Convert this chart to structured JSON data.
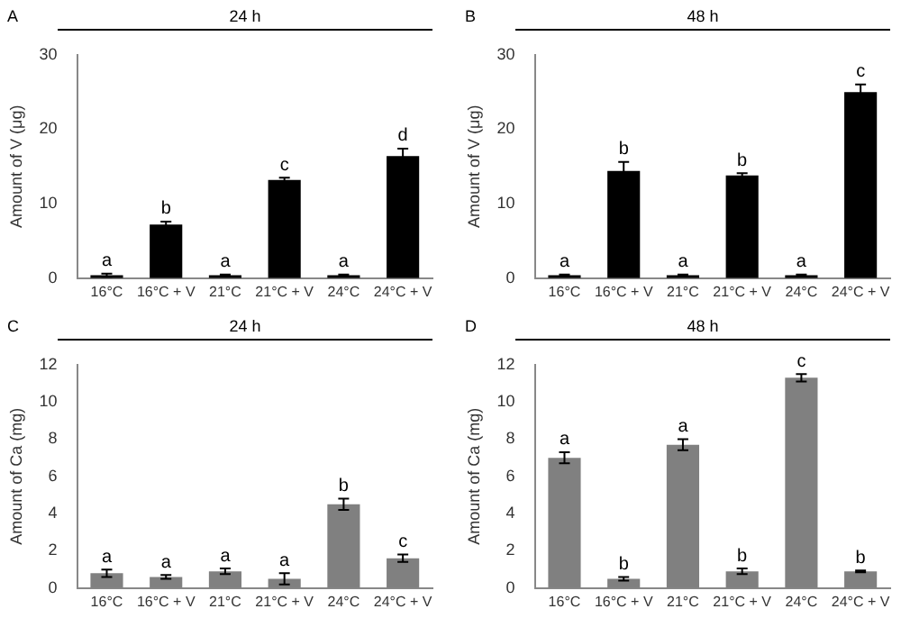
{
  "chart_data": [
    {
      "type": "bar",
      "title": "24 h",
      "annotations": [
        "A",
        {
          "text": "a",
          "x": "16°C",
          "y": 0.6
        },
        {
          "text": "b",
          "x": "16°C + V",
          "y": 7.6
        },
        {
          "text": "a",
          "x": "21°C",
          "y": 0.5
        },
        {
          "text": "c",
          "x": "21°C + V",
          "y": 13.5
        },
        {
          "text": "a",
          "x": "24°C",
          "y": 0.5
        },
        {
          "text": "d",
          "x": "24°C + V",
          "y": 17.4
        }
      ],
      "ylabel": "Amount of V (μg)",
      "categories": [
        "16°C",
        "16°C + V",
        "21°C",
        "21°C + V",
        "24°C",
        "24°C + V"
      ],
      "values": [
        0.4,
        7.2,
        0.4,
        13.2,
        0.4,
        16.4
      ],
      "errors": [
        0.2,
        0.4,
        0.1,
        0.3,
        0.1,
        1.0
      ],
      "color": "#000000",
      "ylim": [
        0,
        30
      ],
      "yticks": [
        0,
        10,
        20,
        30
      ],
      "grid": false,
      "legend": false
    },
    {
      "type": "bar",
      "title": "48 h",
      "annotations": [
        "B",
        {
          "text": "a",
          "x": "16°C",
          "y": 0.5
        },
        {
          "text": "b",
          "x": "16°C + V",
          "y": 15.6
        },
        {
          "text": "a",
          "x": "21°C",
          "y": 0.5
        },
        {
          "text": "b",
          "x": "21°C + V",
          "y": 14.1
        },
        {
          "text": "a",
          "x": "24°C",
          "y": 0.5
        },
        {
          "text": "c",
          "x": "24°C + V",
          "y": 26.0
        }
      ],
      "ylabel": "Amount of V (μg)",
      "categories": [
        "16°C",
        "16°C + V",
        "21°C",
        "21°C + V",
        "24°C",
        "24°C + V"
      ],
      "values": [
        0.4,
        14.4,
        0.4,
        13.8,
        0.4,
        25.0
      ],
      "errors": [
        0.1,
        1.2,
        0.1,
        0.3,
        0.1,
        1.0
      ],
      "color": "#000000",
      "ylim": [
        0,
        30
      ],
      "yticks": [
        0,
        10,
        20,
        30
      ],
      "grid": false,
      "legend": false
    },
    {
      "type": "bar",
      "title": "24 h",
      "annotations": [
        "C",
        {
          "text": "a",
          "x": "16°C",
          "y": 1.0
        },
        {
          "text": "a",
          "x": "16°C + V",
          "y": 0.7
        },
        {
          "text": "a",
          "x": "21°C",
          "y": 1.05
        },
        {
          "text": "a",
          "x": "21°C + V",
          "y": 0.8
        },
        {
          "text": "b",
          "x": "24°C",
          "y": 4.8
        },
        {
          "text": "c",
          "x": "24°C + V",
          "y": 1.8
        }
      ],
      "ylabel": "Amount of Ca (mg)",
      "categories": [
        "16°C",
        "16°C + V",
        "21°C",
        "21°C + V",
        "24°C",
        "24°C + V"
      ],
      "values": [
        0.8,
        0.6,
        0.9,
        0.5,
        4.5,
        1.6
      ],
      "errors": [
        0.2,
        0.1,
        0.15,
        0.3,
        0.3,
        0.2
      ],
      "color": "#808080",
      "ylim": [
        0,
        12
      ],
      "yticks": [
        0,
        2,
        4,
        6,
        8,
        10,
        12
      ],
      "grid": false,
      "legend": false
    },
    {
      "type": "bar",
      "title": "48 h",
      "annotations": [
        "D",
        {
          "text": "a",
          "x": "16°C",
          "y": 7.3
        },
        {
          "text": "b",
          "x": "16°C + V",
          "y": 0.6
        },
        {
          "text": "a",
          "x": "21°C",
          "y": 8.0
        },
        {
          "text": "b",
          "x": "21°C + V",
          "y": 1.05
        },
        {
          "text": "c",
          "x": "24°C",
          "y": 11.5
        },
        {
          "text": "b",
          "x": "24°C + V",
          "y": 0.95
        }
      ],
      "ylabel": "Amount of Ca (mg)",
      "categories": [
        "16°C",
        "16°C + V",
        "21°C",
        "21°C + V",
        "24°C",
        "24°C + V"
      ],
      "values": [
        7.0,
        0.5,
        7.7,
        0.9,
        11.3,
        0.9
      ],
      "errors": [
        0.3,
        0.1,
        0.3,
        0.15,
        0.2,
        0.05
      ],
      "color": "#808080",
      "ylim": [
        0,
        12
      ],
      "yticks": [
        0,
        2,
        4,
        6,
        8,
        10,
        12
      ],
      "grid": false,
      "legend": false
    }
  ]
}
